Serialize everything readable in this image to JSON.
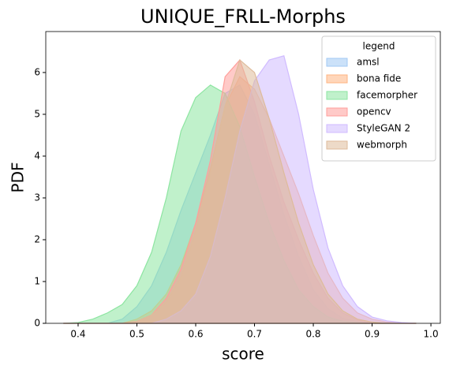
{
  "chart_data": {
    "type": "area",
    "title": "UNIQUE_FRLL-Morphs",
    "xlabel": "score",
    "ylabel": "PDF",
    "x": [
      0.375,
      0.4,
      0.425,
      0.45,
      0.475,
      0.5,
      0.525,
      0.55,
      0.575,
      0.6,
      0.625,
      0.65,
      0.675,
      0.7,
      0.725,
      0.75,
      0.775,
      0.8,
      0.825,
      0.85,
      0.875,
      0.9,
      0.925,
      0.95,
      0.975
    ],
    "series": [
      {
        "name": "amsl",
        "color": "#a1c9f4",
        "values": [
          0,
          0,
          0,
          0,
          0.1,
          0.4,
          0.9,
          1.7,
          2.7,
          3.6,
          4.5,
          5.5,
          5.7,
          5.0,
          3.8,
          2.6,
          1.6,
          0.8,
          0.35,
          0.12,
          0.04,
          0,
          0,
          0,
          0
        ]
      },
      {
        "name": "bona fide",
        "color": "#ffb482",
        "values": [
          0,
          0,
          0,
          0,
          0,
          0.1,
          0.3,
          0.7,
          1.4,
          2.4,
          3.7,
          5.2,
          5.9,
          5.6,
          4.9,
          4.0,
          3.1,
          2.1,
          1.2,
          0.6,
          0.25,
          0.1,
          0.03,
          0,
          0
        ]
      },
      {
        "name": "facemorpher",
        "color": "#8de5a1",
        "values": [
          0,
          0.02,
          0.1,
          0.25,
          0.45,
          0.9,
          1.7,
          3.0,
          4.6,
          5.4,
          5.7,
          5.5,
          4.7,
          3.5,
          2.4,
          1.5,
          0.8,
          0.4,
          0.15,
          0.05,
          0.02,
          0,
          0,
          0,
          0
        ]
      },
      {
        "name": "opencv",
        "color": "#ff9f9b",
        "values": [
          0,
          0,
          0,
          0,
          0,
          0.05,
          0.2,
          0.6,
          1.3,
          2.4,
          3.9,
          5.9,
          6.3,
          5.3,
          4.0,
          2.9,
          2.0,
          1.2,
          0.6,
          0.25,
          0.08,
          0,
          0,
          0,
          0
        ]
      },
      {
        "name": "StyleGAN 2",
        "color": "#d0bbff",
        "values": [
          0,
          0,
          0,
          0,
          0,
          0,
          0,
          0.1,
          0.3,
          0.7,
          1.6,
          3.0,
          4.6,
          5.8,
          6.3,
          6.4,
          5.0,
          3.2,
          1.8,
          0.9,
          0.4,
          0.15,
          0.06,
          0.02,
          0
        ]
      },
      {
        "name": "webmorph",
        "color": "#debb9b",
        "values": [
          0,
          0,
          0,
          0,
          0,
          0.05,
          0.2,
          0.5,
          1.1,
          2.2,
          3.6,
          5.2,
          6.3,
          6.0,
          4.9,
          3.6,
          2.4,
          1.4,
          0.7,
          0.3,
          0.1,
          0.03,
          0,
          0,
          0
        ]
      }
    ],
    "xlim": [
      0.345,
      1.016
    ],
    "ylim": [
      0,
      6.98
    ],
    "xticks": [
      0.4,
      0.5,
      0.6,
      0.7,
      0.8,
      0.9,
      {
        "value": 1.0,
        "label": "1.0"
      }
    ],
    "yticks": [
      0,
      1,
      2,
      3,
      4,
      5,
      6
    ],
    "legend_title": "legend",
    "legend_position": "upper right"
  }
}
